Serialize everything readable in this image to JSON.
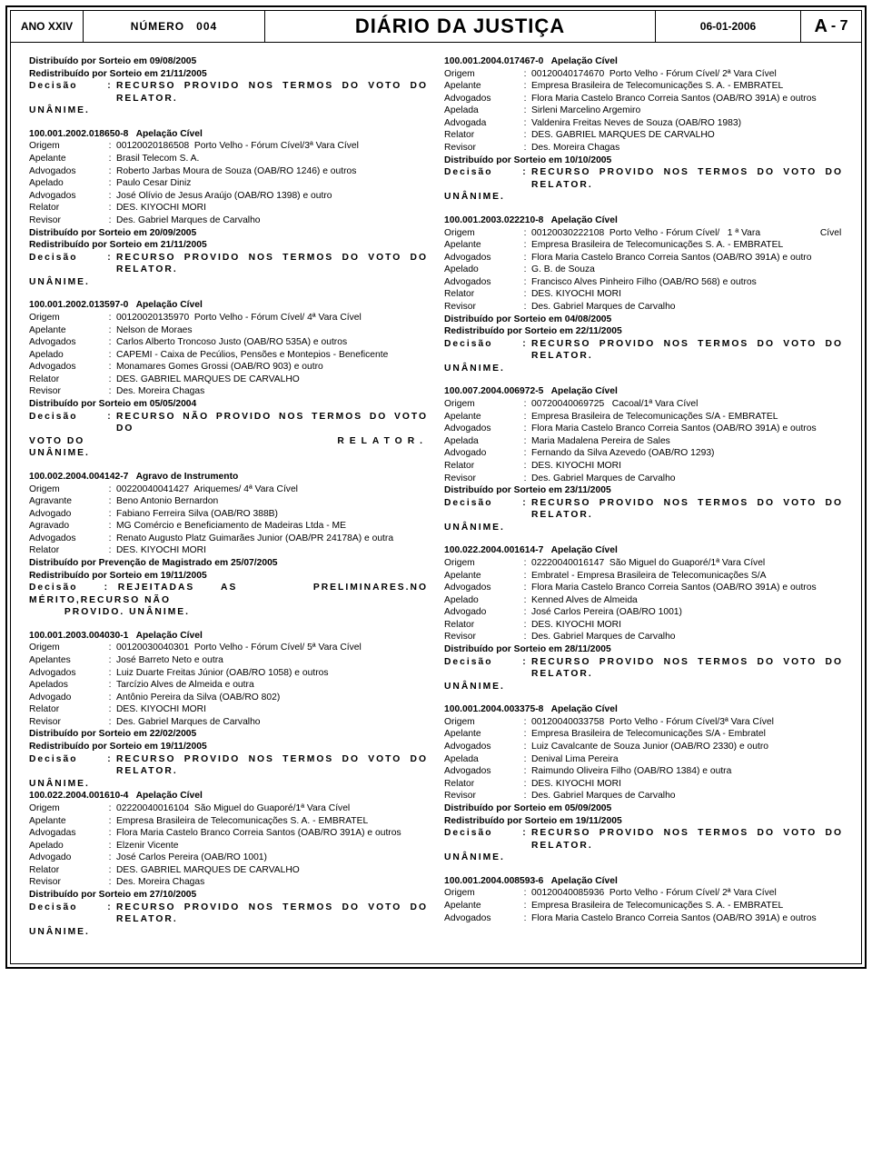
{
  "header": {
    "year": "ANO XXIV",
    "numero_label": "NÚMERO",
    "numero_value": "004",
    "title": "DIÁRIO DA JUSTIÇA",
    "date": "06-01-2006",
    "page_letter": "A",
    "page_sep": "- 7"
  },
  "left": [
    {
      "lines": [
        {
          "t": "p",
          "b": true,
          "text": "Distribuído por Sorteio em 09/08/2005"
        },
        {
          "t": "p",
          "b": true,
          "text": "Redistribuído por Sorteio em 21/11/2005"
        },
        {
          "t": "kv",
          "lbl": "Decisão",
          "val": "RECURSO PROVIDO NOS TERMOS DO VOTO DO RELATOR.",
          "b": true,
          "wide": true
        },
        {
          "t": "p",
          "b": true,
          "text": "UNÂNIME.",
          "wide": true
        }
      ]
    },
    {
      "lines": [
        {
          "t": "case",
          "id": "100.001.2002.018650-8",
          "tipo": "Apelação Cível"
        },
        {
          "t": "kv",
          "lbl": "Origem",
          "val": "00120020186508  Porto Velho - Fórum Cível/3ª Vara Cível"
        },
        {
          "t": "kv",
          "lbl": "Apelante",
          "val": "Brasil Telecom S. A."
        },
        {
          "t": "kv",
          "lbl": "Advogados",
          "val": "Roberto Jarbas Moura de Souza (OAB/RO 1246) e outros"
        },
        {
          "t": "kv",
          "lbl": "Apelado",
          "val": "Paulo Cesar Diniz"
        },
        {
          "t": "kv",
          "lbl": "Advogados",
          "val": "José Olívio de Jesus Araújo (OAB/RO 1398) e outro"
        },
        {
          "t": "kv",
          "lbl": "Relator",
          "val": "DES. KIYOCHI MORI"
        },
        {
          "t": "kv",
          "lbl": "Revisor",
          "val": "Des. Gabriel Marques de Carvalho"
        },
        {
          "t": "p",
          "b": true,
          "text": "Distribuído por Sorteio em 20/09/2005"
        },
        {
          "t": "p",
          "b": true,
          "text": "Redistribuído por Sorteio em 21/11/2005"
        },
        {
          "t": "kv",
          "lbl": "Decisão",
          "val": "RECURSO PROVIDO NOS TERMOS DO VOTO DO RELATOR.",
          "b": true,
          "wide": true
        },
        {
          "t": "p",
          "b": true,
          "text": "UNÂNIME.",
          "wide": true
        }
      ]
    },
    {
      "lines": [
        {
          "t": "case",
          "id": "100.001.2002.013597-0",
          "tipo": "Apelação Cível"
        },
        {
          "t": "kv",
          "lbl": "Origem",
          "val": "00120020135970  Porto Velho - Fórum Cível/ 4ª Vara Cível"
        },
        {
          "t": "kv",
          "lbl": "Apelante",
          "val": "Nelson de Moraes"
        },
        {
          "t": "kv",
          "lbl": "Advogados",
          "val": "Carlos Alberto Troncoso Justo (OAB/RO 535A) e outros"
        },
        {
          "t": "kv",
          "lbl": "Apelado",
          "val": "CAPEMI - Caixa de Pecúlios, Pensões e Montepios - Beneficente"
        },
        {
          "t": "kv",
          "lbl": "Advogados",
          "val": "Monamares Gomes Grossi (OAB/RO 903) e outro"
        },
        {
          "t": "kv",
          "lbl": "Relator",
          "val": "DES. GABRIEL MARQUES DE CARVALHO"
        },
        {
          "t": "kv",
          "lbl": "Revisor",
          "val": "Des. Moreira Chagas"
        },
        {
          "t": "p",
          "b": true,
          "text": "Distribuído por Sorteio em 05/05/2004"
        },
        {
          "t": "kv",
          "lbl": "Decisão",
          "val": "RECURSO NÃO PROVIDO NOS TERMOS DO VOTO DO",
          "b": true,
          "wide": true
        },
        {
          "t": "just",
          "left": "VOTO DO",
          "right": "RELATOR.",
          "b": true,
          "wide": true,
          "wider": true
        },
        {
          "t": "p",
          "b": true,
          "text": "UNÂNIME.",
          "wide": true
        }
      ]
    },
    {
      "lines": [
        {
          "t": "case",
          "id": "100.002.2004.004142-7",
          "tipo": "Agravo de Instrumento"
        },
        {
          "t": "kv",
          "lbl": "Origem",
          "val": "00220040041427  Ariquemes/ 4ª Vara Cível"
        },
        {
          "t": "kv",
          "lbl": "Agravante",
          "val": "Beno Antonio Bernardon"
        },
        {
          "t": "kv",
          "lbl": "Advogado",
          "val": "Fabiano Ferreira Silva (OAB/RO 388B)"
        },
        {
          "t": "kv",
          "lbl": "Agravado",
          "val": "MG Comércio e Beneficiamento de Madeiras Ltda - ME"
        },
        {
          "t": "kv",
          "lbl": "Advogados",
          "val": "Renato Augusto Platz Guimarães Junior (OAB/PR 24178A) e outra"
        },
        {
          "t": "kv",
          "lbl": "Relator",
          "val": "DES. KIYOCHI MORI"
        },
        {
          "t": "p",
          "b": true,
          "text": "Distribuído por Prevenção de Magistrado em 25/07/2005"
        },
        {
          "t": "p",
          "b": true,
          "text": "Redistribuído por Sorteio em 19/11/2005"
        },
        {
          "t": "just",
          "left": "Decisão      :  REJEITADAS      AS",
          "right": "PRELIMINARES.NO",
          "b": true,
          "wide": true
        },
        {
          "t": "p",
          "b": true,
          "text": "MÉRITO,RECURSO NÃO",
          "wide": true
        },
        {
          "t": "p",
          "b": true,
          "text": "        PROVIDO. UNÂNIME.",
          "wide": true
        }
      ]
    },
    {
      "lines": [
        {
          "t": "case",
          "id": "100.001.2003.004030-1",
          "tipo": "Apelação Cível"
        },
        {
          "t": "kv",
          "lbl": "Origem",
          "val": "00120030040301  Porto Velho - Fórum Cível/ 5ª Vara Cível"
        },
        {
          "t": "kv",
          "lbl": "Apelantes",
          "val": "José Barreto Neto e outra"
        },
        {
          "t": "kv",
          "lbl": "Advogados",
          "val": "Luiz Duarte Freitas Júnior (OAB/RO 1058) e outros"
        },
        {
          "t": "kv",
          "lbl": "Apelados",
          "val": "Tarcízio Alves de Almeida e outra"
        },
        {
          "t": "kv",
          "lbl": "Advogado",
          "val": "Antônio Pereira da Silva (OAB/RO 802)"
        },
        {
          "t": "kv",
          "lbl": "Relator",
          "val": "DES. KIYOCHI MORI"
        },
        {
          "t": "kv",
          "lbl": "Revisor",
          "val": "Des. Gabriel Marques de Carvalho"
        },
        {
          "t": "p",
          "b": true,
          "text": "Distribuído por Sorteio em 22/02/2005"
        },
        {
          "t": "p",
          "b": true,
          "text": "Redistribuído por Sorteio em 19/11/2005"
        },
        {
          "t": "kv",
          "lbl": "Decisão",
          "val": "RECURSO PROVIDO NOS TERMOS DO VOTO DO RELATOR.",
          "b": true,
          "wide": true
        },
        {
          "t": "p",
          "b": true,
          "text": "UNÂNIME.",
          "wide": true
        },
        {
          "t": "case",
          "id": "100.022.2004.001610-4",
          "tipo": "Apelação Cível"
        },
        {
          "t": "kv",
          "lbl": "Origem",
          "val": "02220040016104  São Miguel do Guaporé/1ª Vara Cível"
        },
        {
          "t": "kv",
          "lbl": "Apelante",
          "val": "Empresa Brasileira de Telecomunicações S. A. - EMBRATEL"
        },
        {
          "t": "kv",
          "lbl": "Advogadas",
          "val": "Flora Maria Castelo Branco Correia Santos (OAB/RO 391A) e outros"
        },
        {
          "t": "kv",
          "lbl": "Apelado",
          "val": "Elzenir Vicente"
        },
        {
          "t": "kv",
          "lbl": "Advogado",
          "val": "José Carlos Pereira (OAB/RO 1001)"
        },
        {
          "t": "kv",
          "lbl": "Relator",
          "val": "DES. GABRIEL MARQUES DE CARVALHO"
        },
        {
          "t": "kv",
          "lbl": "Revisor",
          "val": "Des. Moreira Chagas"
        },
        {
          "t": "p",
          "b": true,
          "text": "Distribuído por Sorteio em 27/10/2005"
        },
        {
          "t": "kv",
          "lbl": "Decisão",
          "val": "RECURSO PROVIDO NOS TERMOS DO VOTO DO RELATOR.",
          "b": true,
          "wide": true
        },
        {
          "t": "p",
          "b": true,
          "text": "UNÂNIME.",
          "wide": true
        }
      ]
    }
  ],
  "right": [
    {
      "lines": [
        {
          "t": "case",
          "id": "100.001.2004.017467-0",
          "tipo": "Apelação Cível"
        },
        {
          "t": "kv",
          "lbl": "Origem",
          "val": "00120040174670  Porto Velho - Fórum Cível/ 2ª Vara Cível"
        },
        {
          "t": "kv",
          "lbl": "Apelante",
          "val": "Empresa Brasileira de Telecomunicações S. A. - EMBRATEL"
        },
        {
          "t": "kv",
          "lbl": "Advogados",
          "val": "Flora Maria Castelo Branco Correia Santos (OAB/RO 391A) e outros"
        },
        {
          "t": "kv",
          "lbl": "Apelada",
          "val": "Sirleni Marcelino Argemiro"
        },
        {
          "t": "kv",
          "lbl": "Advogada",
          "val": "Valdenira Freitas Neves de Souza (OAB/RO 1983)"
        },
        {
          "t": "kv",
          "lbl": "Relator",
          "val": "DES. GABRIEL MARQUES DE CARVALHO"
        },
        {
          "t": "kv",
          "lbl": "Revisor",
          "val": "Des. Moreira Chagas"
        },
        {
          "t": "p",
          "b": true,
          "text": "Distribuído por Sorteio em 10/10/2005"
        },
        {
          "t": "kv",
          "lbl": "Decisão",
          "val": "RECURSO PROVIDO NOS TERMOS DO VOTO DO RELATOR.",
          "b": true,
          "wide": true
        },
        {
          "t": "p",
          "b": true,
          "text": "UNÂNIME.",
          "wide": true
        }
      ]
    },
    {
      "lines": [
        {
          "t": "case",
          "id": "100.001.2003.022210-8",
          "tipo": "Apelação Cível"
        },
        {
          "t": "kv",
          "lbl": "Origem",
          "val": "00120030222108  Porto Velho - Fórum Cível/   1 ª Vara                       Cível"
        },
        {
          "t": "kv",
          "lbl": "Apelante",
          "val": "Empresa Brasileira de Telecomunicações S. A. - EMBRATEL"
        },
        {
          "t": "kv",
          "lbl": "Advogados",
          "val": "Flora Maria Castelo Branco Correia Santos (OAB/RO 391A) e outro"
        },
        {
          "t": "kv",
          "lbl": "Apelado",
          "val": "G. B. de Souza"
        },
        {
          "t": "kv",
          "lbl": "Advogados",
          "val": "Francisco Alves Pinheiro Filho (OAB/RO 568) e outros"
        },
        {
          "t": "kv",
          "lbl": "Relator",
          "val": "DES. KIYOCHI MORI"
        },
        {
          "t": "kv",
          "lbl": "Revisor",
          "val": "Des. Gabriel Marques de Carvalho"
        },
        {
          "t": "p",
          "b": true,
          "text": "Distribuído por Sorteio em 04/08/2005"
        },
        {
          "t": "p",
          "b": true,
          "text": "Redistribuído por Sorteio em 22/11/2005"
        },
        {
          "t": "kv",
          "lbl": "Decisão",
          "val": "RECURSO PROVIDO NOS TERMOS DO VOTO DO RELATOR.",
          "b": true,
          "wide": true
        },
        {
          "t": "p",
          "b": true,
          "text": "UNÂNIME.",
          "wide": true
        }
      ]
    },
    {
      "lines": [
        {
          "t": "case",
          "id": "100.007.2004.006972-5",
          "tipo": "Apelação Cível"
        },
        {
          "t": "kv",
          "lbl": "Origem",
          "val": "00720040069725   Cacoal/1ª Vara Cível"
        },
        {
          "t": "kv",
          "lbl": "Apelante",
          "val": "Empresa Brasileira de Telecomunicações S/A - EMBRATEL"
        },
        {
          "t": "kv",
          "lbl": "Advogados",
          "val": "Flora Maria Castelo Branco Correia Santos (OAB/RO 391A) e outros"
        },
        {
          "t": "kv",
          "lbl": "Apelada",
          "val": "Maria Madalena Pereira de Sales"
        },
        {
          "t": "kv",
          "lbl": "Advogado",
          "val": "Fernando da Silva Azevedo (OAB/RO 1293)"
        },
        {
          "t": "kv",
          "lbl": "Relator",
          "val": "DES. KIYOCHI MORI"
        },
        {
          "t": "kv",
          "lbl": "Revisor",
          "val": "Des. Gabriel Marques de Carvalho"
        },
        {
          "t": "p",
          "b": true,
          "text": "Distribuído por Sorteio em 23/11/2005"
        },
        {
          "t": "kv",
          "lbl": "Decisão",
          "val": "RECURSO PROVIDO NOS TERMOS DO VOTO DO RELATOR.",
          "b": true,
          "wide": true
        },
        {
          "t": "p",
          "b": true,
          "text": "UNÂNIME.",
          "wide": true
        }
      ]
    },
    {
      "lines": [
        {
          "t": "case",
          "id": "100.022.2004.001614-7",
          "tipo": "Apelação Cível"
        },
        {
          "t": "kv",
          "lbl": "Origem",
          "val": "02220040016147  São Miguel do Guaporé/1ª Vara Cível"
        },
        {
          "t": "kv",
          "lbl": "Apelante",
          "val": "Embratel - Empresa Brasileira de Telecomunicações S/A"
        },
        {
          "t": "kv",
          "lbl": "Advogados",
          "val": "Flora Maria Castelo Branco Correia Santos (OAB/RO 391A) e outros"
        },
        {
          "t": "kv",
          "lbl": "Apelado",
          "val": "Kenned Alves de Almeida"
        },
        {
          "t": "kv",
          "lbl": "Advogado",
          "val": "José Carlos Pereira (OAB/RO 1001)"
        },
        {
          "t": "kv",
          "lbl": "Relator",
          "val": "DES. KIYOCHI MORI"
        },
        {
          "t": "kv",
          "lbl": "Revisor",
          "val": "Des. Gabriel Marques de Carvalho"
        },
        {
          "t": "p",
          "b": true,
          "text": "Distribuído por Sorteio em 28/11/2005"
        },
        {
          "t": "kv",
          "lbl": "Decisão",
          "val": "RECURSO PROVIDO NOS TERMOS DO VOTO DO RELATOR.",
          "b": true,
          "wide": true
        },
        {
          "t": "p",
          "b": true,
          "text": "UNÂNIME.",
          "wide": true
        }
      ]
    },
    {
      "lines": [
        {
          "t": "case",
          "id": "100.001.2004.003375-8",
          "tipo": "Apelação Cível"
        },
        {
          "t": "kv",
          "lbl": "Origem",
          "val": "00120040033758  Porto Velho - Fórum Cível/3ª Vara Cível"
        },
        {
          "t": "kv",
          "lbl": "Apelante",
          "val": "Empresa Brasileira de Telecomunicações S/A - Embratel"
        },
        {
          "t": "kv",
          "lbl": "Advogados",
          "val": "Luiz Cavalcante de Souza Junior (OAB/RO 2330) e outro"
        },
        {
          "t": "kv",
          "lbl": "Apelada",
          "val": "Denival Lima Pereira"
        },
        {
          "t": "kv",
          "lbl": "Advogados",
          "val": "Raimundo Oliveira Filho (OAB/RO 1384) e outra"
        },
        {
          "t": "kv",
          "lbl": "Relator",
          "val": "DES. KIYOCHI MORI"
        },
        {
          "t": "kv",
          "lbl": "Revisor",
          "val": "Des. Gabriel Marques de Carvalho"
        },
        {
          "t": "p",
          "b": true,
          "text": "Distribuído por Sorteio em 05/09/2005"
        },
        {
          "t": "p",
          "b": true,
          "text": "Redistribuído por Sorteio em 19/11/2005"
        },
        {
          "t": "kv",
          "lbl": "Decisão",
          "val": "RECURSO PROVIDO NOS TERMOS DO VOTO DO RELATOR.",
          "b": true,
          "wide": true
        },
        {
          "t": "p",
          "b": true,
          "text": "UNÂNIME.",
          "wide": true
        }
      ]
    },
    {
      "lines": [
        {
          "t": "case",
          "id": "100.001.2004.008593-6",
          "tipo": "Apelação Cível"
        },
        {
          "t": "kv",
          "lbl": "Origem",
          "val": "00120040085936  Porto Velho - Fórum Cível/ 2ª Vara Cível"
        },
        {
          "t": "kv",
          "lbl": "Apelante",
          "val": "Empresa Brasileira de Telecomunicações S. A. - EMBRATEL"
        },
        {
          "t": "kv",
          "lbl": "Advogados",
          "val": "Flora Maria Castelo Branco Correia Santos (OAB/RO 391A) e outros"
        }
      ]
    }
  ]
}
